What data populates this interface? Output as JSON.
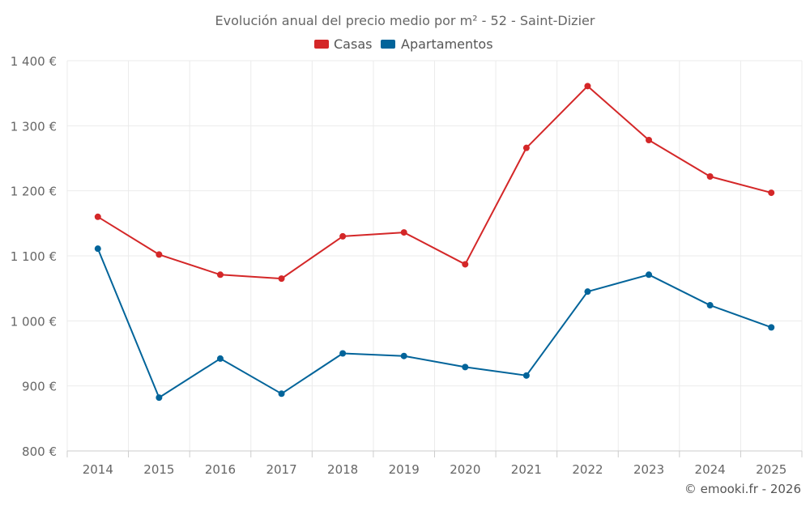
{
  "chart_data": {
    "type": "line",
    "title": "Evolución anual del precio medio por m² - 52 - Saint-Dizier",
    "categories": [
      "2014",
      "2015",
      "2016",
      "2017",
      "2018",
      "2019",
      "2020",
      "2021",
      "2022",
      "2023",
      "2024",
      "2025"
    ],
    "series": [
      {
        "name": "Casas",
        "color": "#d42728",
        "values": [
          1160,
          1102,
          1071,
          1065,
          1130,
          1136,
          1087,
          1266,
          1361,
          1278,
          1222,
          1197
        ]
      },
      {
        "name": "Apartamentos",
        "color": "#02649a",
        "values": [
          1111,
          882,
          942,
          888,
          950,
          946,
          929,
          916,
          1045,
          1071,
          1024,
          990
        ]
      }
    ],
    "ylim": [
      800,
      1400
    ],
    "yticks": [
      800,
      900,
      1000,
      1100,
      1200,
      1300,
      1400
    ],
    "ytick_labels": [
      "800 €",
      "900 €",
      "1 000 €",
      "1 100 €",
      "1 200 €",
      "1 300 €",
      "1 400 €"
    ],
    "legend_position": "top-center",
    "grid": true
  },
  "credit": "© emooki.fr - 2026"
}
